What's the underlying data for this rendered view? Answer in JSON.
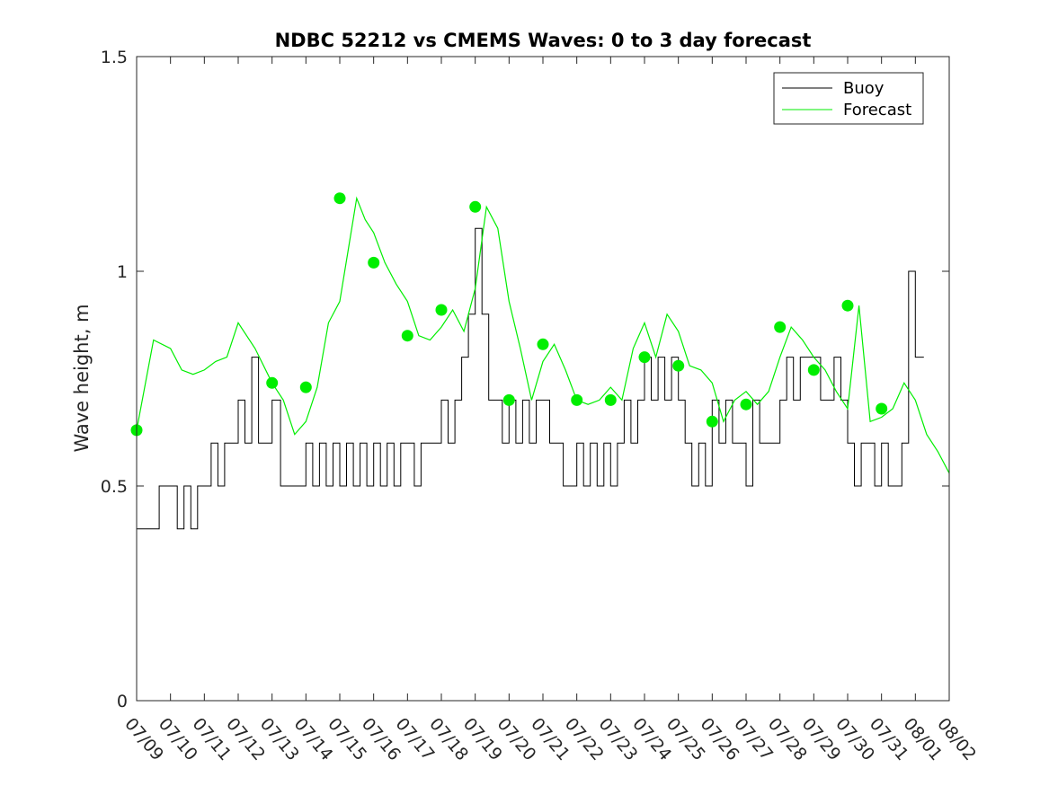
{
  "chart_data": {
    "type": "line",
    "title": "NDBC 52212 vs CMEMS Waves: 0 to 3 day forecast",
    "xlabel": "",
    "ylabel": "Wave height, m",
    "xlim": [
      "07/09",
      "08/02"
    ],
    "ylim": [
      0,
      1.5
    ],
    "x_tick_labels": [
      "07/09",
      "07/10",
      "07/11",
      "07/12",
      "07/13",
      "07/14",
      "07/15",
      "07/16",
      "07/17",
      "07/18",
      "07/19",
      "07/20",
      "07/21",
      "07/22",
      "07/23",
      "07/24",
      "07/25",
      "07/26",
      "07/27",
      "07/28",
      "07/29",
      "07/30",
      "07/31",
      "08/01",
      "08/02"
    ],
    "y_ticks": [
      0,
      0.5,
      1,
      1.5
    ],
    "y_tick_labels": [
      "0",
      "0.5",
      "1",
      "1.5"
    ],
    "grid": false,
    "legend": {
      "placement": "top-right",
      "entries": [
        "Buoy",
        "Forecast"
      ]
    },
    "colors": {
      "buoy": "#000000",
      "forecast": "#00ee00",
      "axis": "#262626"
    },
    "series": [
      {
        "name": "Buoy",
        "x": [
          "07/09",
          "07/09",
          "07/09",
          "07/10",
          "07/10",
          "07/10",
          "07/10",
          "07/10",
          "07/11",
          "07/11",
          "07/11",
          "07/11",
          "07/11",
          "07/12",
          "07/12",
          "07/12",
          "07/12",
          "07/12",
          "07/13",
          "07/13",
          "07/13",
          "07/13",
          "07/14",
          "07/14",
          "07/14",
          "07/14",
          "07/14",
          "07/15",
          "07/15",
          "07/15",
          "07/15",
          "07/15",
          "07/16",
          "07/16",
          "07/16",
          "07/16",
          "07/16",
          "07/17",
          "07/17",
          "07/17",
          "07/17",
          "07/17",
          "07/18",
          "07/18",
          "07/18",
          "07/18",
          "07/18",
          "07/19",
          "07/19",
          "07/19",
          "07/19",
          "07/19",
          "07/20",
          "07/20",
          "07/20",
          "07/20",
          "07/20",
          "07/21",
          "07/21",
          "07/21",
          "07/21",
          "07/21",
          "07/22",
          "07/22",
          "07/22",
          "07/22",
          "07/22",
          "07/23",
          "07/23",
          "07/23",
          "07/23",
          "07/23",
          "07/24",
          "07/24",
          "07/24",
          "07/24",
          "07/24",
          "07/25",
          "07/25",
          "07/25",
          "07/25",
          "07/25",
          "07/26",
          "07/26",
          "07/26",
          "07/26",
          "07/26",
          "07/27",
          "07/27",
          "07/27",
          "07/27",
          "07/27",
          "07/28",
          "07/28",
          "07/28",
          "07/28",
          "07/28",
          "07/29",
          "07/29",
          "07/29",
          "07/29",
          "07/29",
          "07/30",
          "07/30",
          "07/30",
          "07/30",
          "07/30",
          "07/31",
          "07/31",
          "07/31",
          "07/31",
          "07/31",
          "08/01"
        ],
        "values": [
          0.4,
          0.4,
          0.5,
          0.5,
          0.4,
          0.5,
          0.4,
          0.5,
          0.5,
          0.6,
          0.5,
          0.6,
          0.6,
          0.7,
          0.6,
          0.8,
          0.6,
          0.6,
          0.7,
          0.5,
          0.5,
          0.5,
          0.6,
          0.5,
          0.6,
          0.5,
          0.6,
          0.5,
          0.6,
          0.5,
          0.6,
          0.5,
          0.6,
          0.5,
          0.6,
          0.5,
          0.6,
          0.6,
          0.5,
          0.6,
          0.6,
          0.6,
          0.7,
          0.6,
          0.7,
          0.8,
          0.9,
          1.1,
          0.9,
          0.7,
          0.7,
          0.6,
          0.7,
          0.6,
          0.7,
          0.6,
          0.7,
          0.7,
          0.6,
          0.6,
          0.5,
          0.5,
          0.6,
          0.5,
          0.6,
          0.5,
          0.6,
          0.5,
          0.6,
          0.7,
          0.6,
          0.7,
          0.8,
          0.7,
          0.8,
          0.7,
          0.8,
          0.7,
          0.6,
          0.5,
          0.6,
          0.5,
          0.7,
          0.6,
          0.7,
          0.6,
          0.6,
          0.5,
          0.7,
          0.6,
          0.6,
          0.6,
          0.7,
          0.8,
          0.7,
          0.8,
          0.8,
          0.8,
          0.7,
          0.7,
          0.8,
          0.7,
          0.6,
          0.5,
          0.6,
          0.6,
          0.5,
          0.6,
          0.5,
          0.5,
          0.6,
          1.0,
          0.8
        ]
      },
      {
        "name": "Forecast",
        "x": [
          "07/09",
          "07/09",
          "07/10",
          "07/10",
          "07/10",
          "07/11",
          "07/11",
          "07/11",
          "07/12",
          "07/12",
          "07/13",
          "07/13",
          "07/13",
          "07/14",
          "07/14",
          "07/14",
          "07/15",
          "07/15",
          "07/15",
          "07/15",
          "07/16",
          "07/16",
          "07/16",
          "07/17",
          "07/17",
          "07/17",
          "07/18",
          "07/18",
          "07/18",
          "07/19",
          "07/19",
          "07/19",
          "07/20",
          "07/20",
          "07/20",
          "07/21",
          "07/21",
          "07/21",
          "07/22",
          "07/22",
          "07/22",
          "07/23",
          "07/23",
          "07/23",
          "07/24",
          "07/24",
          "07/24",
          "07/25",
          "07/25",
          "07/25",
          "07/26",
          "07/26",
          "07/26",
          "07/27",
          "07/27",
          "07/27",
          "07/28",
          "07/28",
          "07/28",
          "07/29",
          "07/29",
          "07/29",
          "07/30",
          "07/30",
          "07/30",
          "07/31",
          "07/31",
          "07/31",
          "08/01",
          "08/01",
          "08/01",
          "08/02"
        ],
        "values": [
          0.63,
          0.84,
          0.82,
          0.77,
          0.76,
          0.77,
          0.79,
          0.8,
          0.88,
          0.82,
          0.74,
          0.7,
          0.62,
          0.65,
          0.73,
          0.88,
          0.93,
          1.05,
          1.17,
          1.12,
          1.09,
          1.02,
          0.97,
          0.93,
          0.85,
          0.84,
          0.87,
          0.91,
          0.86,
          0.96,
          1.15,
          1.1,
          0.93,
          0.82,
          0.7,
          0.79,
          0.83,
          0.77,
          0.7,
          0.69,
          0.7,
          0.73,
          0.7,
          0.82,
          0.88,
          0.8,
          0.9,
          0.86,
          0.78,
          0.77,
          0.74,
          0.65,
          0.7,
          0.72,
          0.69,
          0.72,
          0.8,
          0.87,
          0.84,
          0.8,
          0.77,
          0.72,
          0.68,
          0.92,
          0.65,
          0.66,
          0.68,
          0.74,
          0.7,
          0.62,
          0.58,
          0.53
        ]
      },
      {
        "name": "",
        "x": [
          "07/09",
          "07/13",
          "07/14",
          "07/15",
          "07/16",
          "07/17",
          "07/18",
          "07/19",
          "07/20",
          "07/21",
          "07/22",
          "07/23",
          "07/24",
          "07/25",
          "07/26",
          "07/27",
          "07/28",
          "07/29",
          "07/30",
          "07/31"
        ],
        "values": [
          0.63,
          0.74,
          0.73,
          1.17,
          1.02,
          0.85,
          0.91,
          1.15,
          0.7,
          0.83,
          0.7,
          0.7,
          0.8,
          0.78,
          0.65,
          0.69,
          0.87,
          0.77,
          0.92,
          0.68
        ]
      }
    ]
  }
}
